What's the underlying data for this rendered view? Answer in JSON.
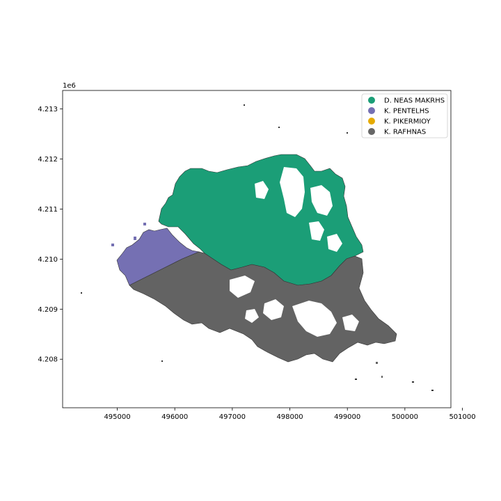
{
  "chart_data": {
    "type": "map",
    "axis_offset_label": "1e6",
    "x_ticks": [
      "495000",
      "496000",
      "497000",
      "498000",
      "499000",
      "500000",
      "501000"
    ],
    "y_ticks": [
      "4.208",
      "4.209",
      "4.210",
      "4.211",
      "4.212",
      "4.213"
    ],
    "xlim": [
      494050,
      500800
    ],
    "ylim": [
      4207030,
      4213370
    ],
    "legend_position": "top-right",
    "regions": [
      {
        "name": "D. NEAS MAKRHS",
        "color": "#1b9e77"
      },
      {
        "name": "K. PENTELHS",
        "color": "#7570b3"
      },
      {
        "name": "K. PIKERMIOY",
        "color": "#e6ab02"
      },
      {
        "name": "K. RAFHNAS",
        "color": "#666666"
      }
    ]
  }
}
